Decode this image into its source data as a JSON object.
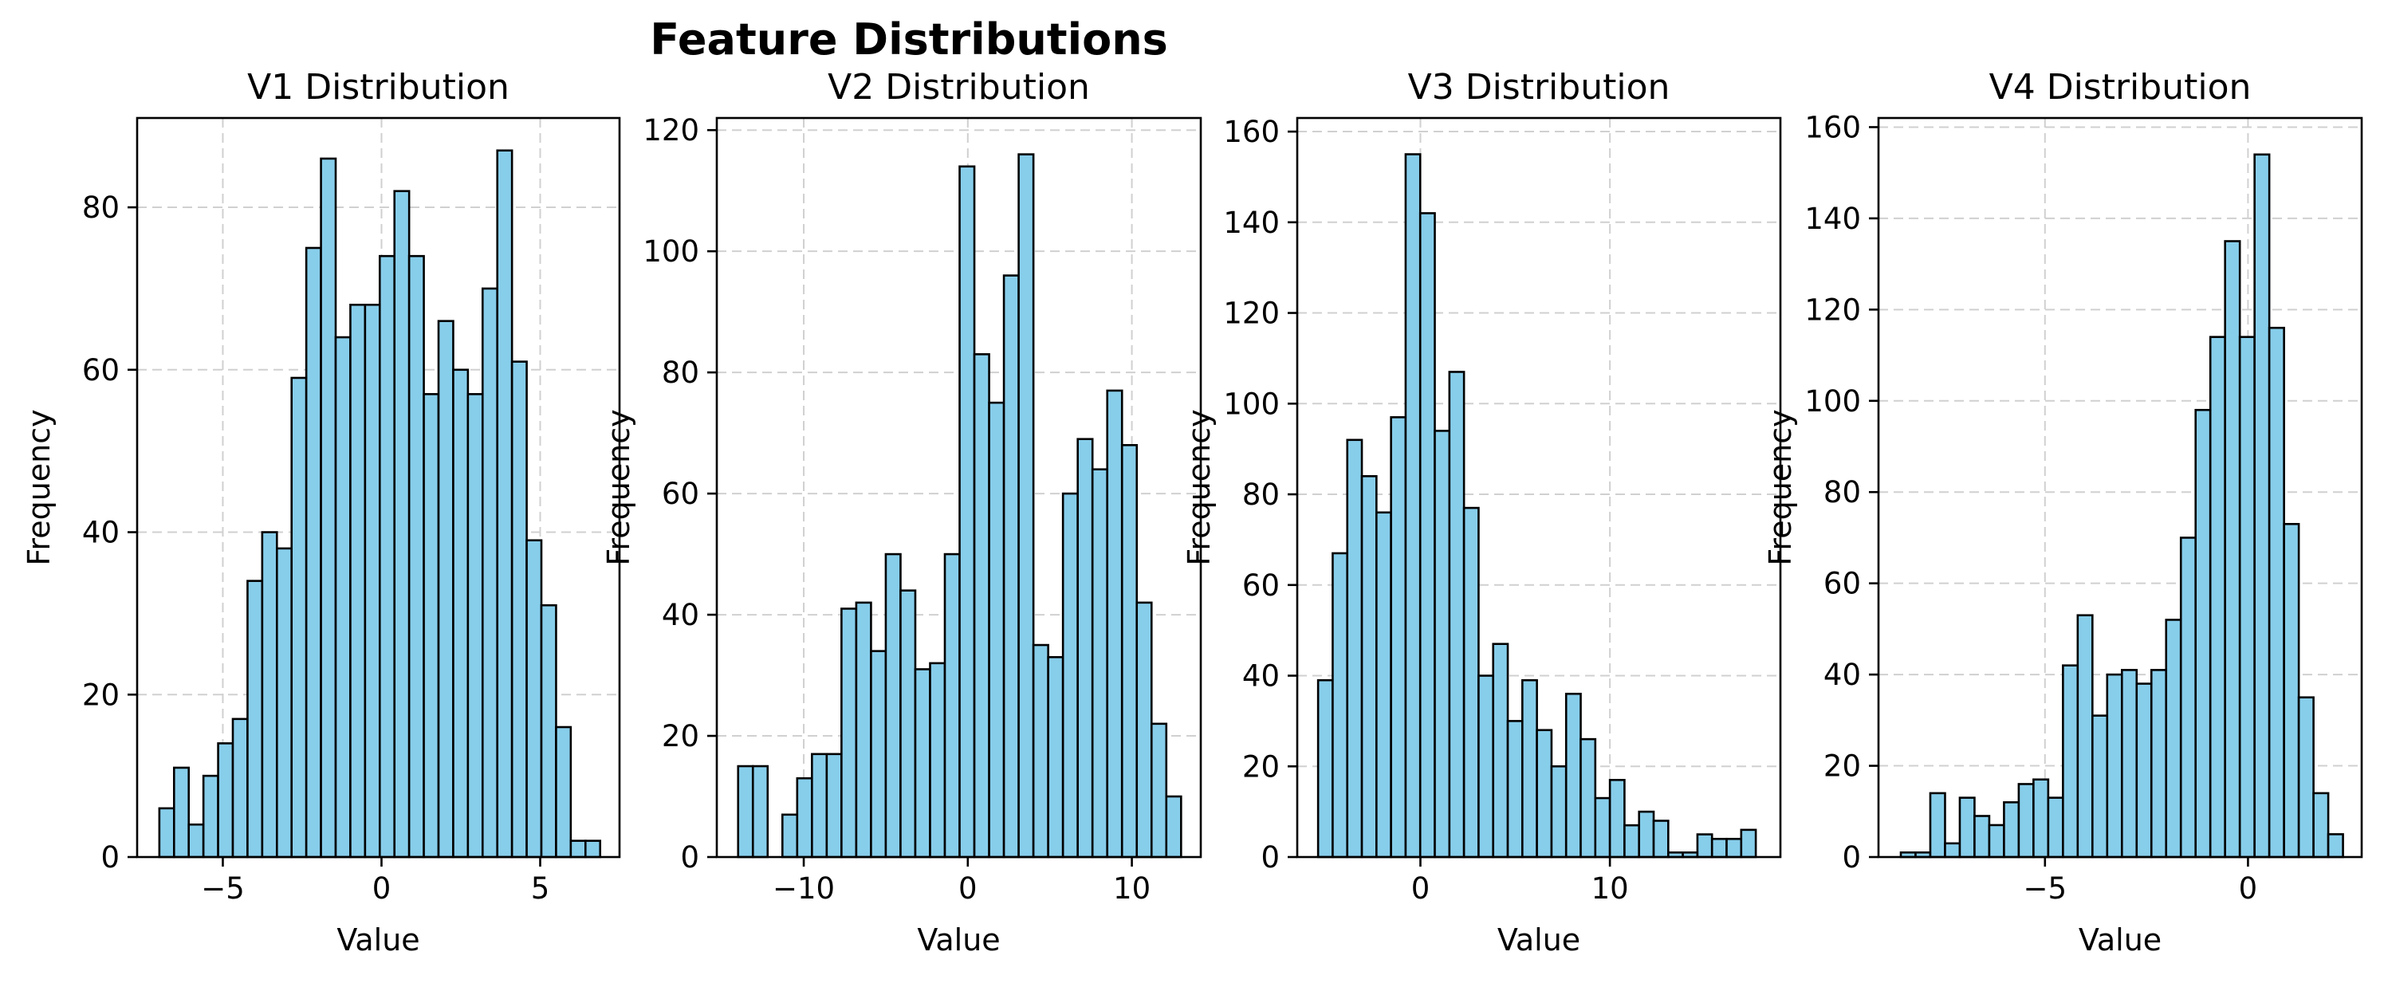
{
  "figure": {
    "title": "Feature Distributions"
  },
  "chart_data": [
    {
      "type": "bar",
      "title": "V1 Distribution",
      "xlabel": "Value",
      "ylabel": "Frequency",
      "xlim": [
        -7.7,
        7.5
      ],
      "ylim": [
        0,
        91
      ],
      "xticks": [
        -5,
        0,
        5
      ],
      "yticks": [
        0,
        20,
        40,
        60,
        80
      ],
      "grid": true,
      "bar_color": "#87ceeb",
      "edge_color": "#000000",
      "bins": {
        "start": -7.0,
        "width": 0.463
      },
      "values": [
        6,
        11,
        4,
        10,
        14,
        17,
        34,
        40,
        38,
        59,
        75,
        86,
        64,
        68,
        68,
        74,
        82,
        74,
        57,
        66,
        60,
        57,
        70,
        87,
        61,
        39,
        31,
        16,
        2,
        2
      ]
    },
    {
      "type": "bar",
      "title": "V2 Distribution",
      "xlabel": "Value",
      "ylabel": "Frequency",
      "xlim": [
        -15.3,
        14.2
      ],
      "ylim": [
        0,
        122
      ],
      "xticks": [
        -10,
        0,
        10
      ],
      "yticks": [
        0,
        20,
        40,
        60,
        80,
        100,
        120
      ],
      "grid": true,
      "bar_color": "#87ceeb",
      "edge_color": "#000000",
      "bins": {
        "start": -14.0,
        "width": 0.9
      },
      "values": [
        15,
        15,
        0,
        7,
        13,
        17,
        17,
        41,
        42,
        34,
        50,
        44,
        31,
        32,
        50,
        114,
        83,
        75,
        96,
        116,
        35,
        33,
        60,
        69,
        64,
        77,
        68,
        42,
        22,
        10
      ]
    },
    {
      "type": "bar",
      "title": "V3 Distribution",
      "xlabel": "Value",
      "ylabel": "Frequency",
      "xlim": [
        -6.5,
        19.0
      ],
      "ylim": [
        0,
        163
      ],
      "xticks": [
        0,
        10
      ],
      "yticks": [
        0,
        20,
        40,
        60,
        80,
        100,
        120,
        140,
        160
      ],
      "grid": true,
      "bar_color": "#87ceeb",
      "edge_color": "#000000",
      "bins": {
        "start": -5.4,
        "width": 0.77
      },
      "values": [
        39,
        67,
        92,
        84,
        76,
        97,
        155,
        142,
        94,
        107,
        77,
        40,
        47,
        30,
        39,
        28,
        20,
        36,
        26,
        13,
        17,
        7,
        10,
        8,
        1,
        1,
        5,
        4,
        4,
        6
      ]
    },
    {
      "type": "bar",
      "title": "V4 Distribution",
      "xlabel": "Value",
      "ylabel": "Frequency",
      "xlim": [
        -9.1,
        2.8
      ],
      "ylim": [
        0,
        162
      ],
      "xticks": [
        -5,
        0
      ],
      "yticks": [
        0,
        20,
        40,
        60,
        80,
        100,
        120,
        140,
        160
      ],
      "grid": true,
      "bar_color": "#87ceeb",
      "edge_color": "#000000",
      "bins": {
        "start": -8.55,
        "width": 0.363
      },
      "values": [
        1,
        1,
        14,
        3,
        13,
        9,
        7,
        12,
        16,
        17,
        13,
        42,
        53,
        31,
        40,
        41,
        38,
        41,
        52,
        70,
        98,
        114,
        135,
        114,
        154,
        116,
        73,
        35,
        14,
        5
      ]
    }
  ]
}
